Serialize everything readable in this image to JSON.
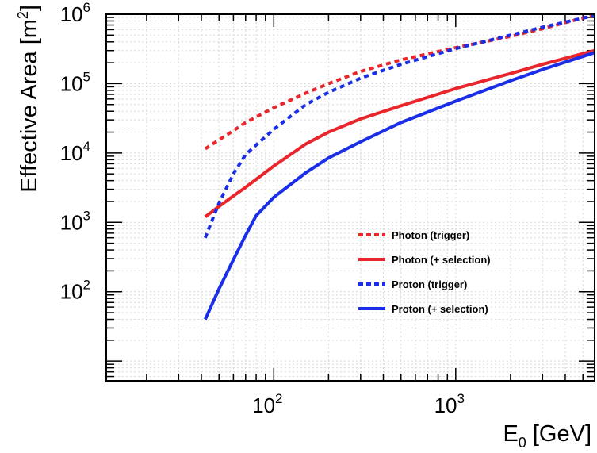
{
  "chart_data": {
    "type": "line",
    "title": "",
    "xlabel": {
      "base": "E",
      "sub": "0",
      "rest": " [GeV]"
    },
    "ylabel": {
      "main": "Effective Area [m",
      "sup": "2",
      "close": "]"
    },
    "x_scale": "log",
    "y_scale": "log",
    "xlim": [
      12,
      5800
    ],
    "ylim": [
      5.2,
      1000000
    ],
    "grid": true,
    "legend_position": "lower-right",
    "x_ticks": [
      {
        "base": "10",
        "exp": "2",
        "value": 100
      },
      {
        "base": "10",
        "exp": "3",
        "value": 1000
      }
    ],
    "y_ticks": [
      {
        "base": "10",
        "exp": "2",
        "value": 100
      },
      {
        "base": "10",
        "exp": "3",
        "value": 1000
      },
      {
        "base": "10",
        "exp": "4",
        "value": 10000
      },
      {
        "base": "10",
        "exp": "5",
        "value": 100000
      },
      {
        "base": "10",
        "exp": "6",
        "value": 1000000
      }
    ],
    "series": [
      {
        "name": "Photon (trigger)",
        "color": "#e8262c",
        "style": "dashed",
        "x": [
          42,
          50,
          60,
          70,
          100,
          150,
          200,
          300,
          500,
          1000,
          2000,
          3000,
          5800
        ],
        "y": [
          11500,
          15500,
          21000,
          27500,
          45000,
          73000,
          100000,
          150000,
          220000,
          330000,
          480000,
          620000,
          980000
        ]
      },
      {
        "name": "Photon (+ selection)",
        "color": "#e8262c",
        "style": "solid",
        "x": [
          42,
          50,
          60,
          70,
          100,
          150,
          200,
          300,
          500,
          1000,
          2000,
          3000,
          5800
        ],
        "y": [
          1200,
          1700,
          2400,
          3200,
          6500,
          13500,
          20000,
          31000,
          48000,
          85000,
          140000,
          190000,
          300000
        ]
      },
      {
        "name": "Proton (trigger)",
        "color": "#1a2ee8",
        "style": "dashed",
        "x": [
          42,
          50,
          60,
          70,
          100,
          150,
          200,
          300,
          500,
          1000,
          2000,
          3000,
          5800
        ],
        "y": [
          600,
          1900,
          5000,
          9500,
          22000,
          50000,
          75000,
          120000,
          190000,
          320000,
          500000,
          650000,
          960000
        ]
      },
      {
        "name": "Proton (+ selection)",
        "color": "#1a2ee8",
        "style": "solid",
        "x": [
          42,
          50,
          60,
          70,
          80,
          100,
          150,
          200,
          300,
          500,
          1000,
          2000,
          3000,
          5800
        ],
        "y": [
          40,
          110,
          290,
          650,
          1250,
          2300,
          5200,
          8500,
          14500,
          27500,
          56000,
          110000,
          160000,
          280000
        ]
      }
    ]
  }
}
